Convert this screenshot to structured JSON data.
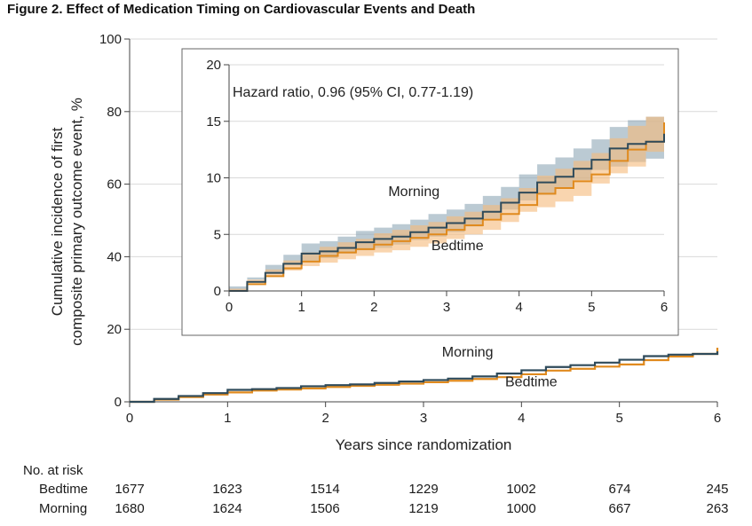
{
  "figure": {
    "title": "Figure 2.  Effect of Medication Timing on Cardiovascular Events and Death"
  },
  "colors": {
    "morning": "#2e4a5a",
    "bedtime": "#e08a1e",
    "morning_band": "#8ea6b6",
    "bedtime_band": "#f5b97a",
    "grid": "#d9d9d9",
    "axis": "#444444"
  },
  "chart_data": [
    {
      "id": "main",
      "type": "line",
      "title": "",
      "xlabel": "Years since randomization",
      "ylabel": [
        "Cumulative incidence of first",
        "composite primary outcome event, %"
      ],
      "xlim": [
        0,
        6
      ],
      "ylim": [
        0,
        100
      ],
      "xticks": [
        0,
        1,
        2,
        3,
        4,
        5,
        6
      ],
      "yticks": [
        0,
        20,
        40,
        60,
        80,
        100
      ],
      "grid": true,
      "series": [
        {
          "name": "Morning",
          "color": "#2e4a5a",
          "x": [
            0,
            0.25,
            0.5,
            0.75,
            1.0,
            1.25,
            1.5,
            1.75,
            2.0,
            2.25,
            2.5,
            2.75,
            3.0,
            3.25,
            3.5,
            3.75,
            4.0,
            4.25,
            4.5,
            4.75,
            5.0,
            5.25,
            5.5,
            5.75,
            6.0
          ],
          "y": [
            0,
            0.8,
            1.6,
            2.4,
            3.3,
            3.5,
            3.8,
            4.3,
            4.6,
            4.8,
            5.2,
            5.6,
            6.0,
            6.4,
            7.0,
            7.8,
            8.7,
            9.6,
            10.1,
            10.8,
            11.6,
            12.6,
            13.0,
            13.2,
            13.9
          ]
        },
        {
          "name": "Bedtime",
          "color": "#e08a1e",
          "x": [
            0,
            0.25,
            0.5,
            0.75,
            1.0,
            1.25,
            1.5,
            1.75,
            2.0,
            2.25,
            2.5,
            2.75,
            3.0,
            3.25,
            3.5,
            3.75,
            4.0,
            4.25,
            4.5,
            4.75,
            5.0,
            5.25,
            5.5,
            5.75,
            6.0
          ],
          "y": [
            0,
            0.6,
            1.3,
            2.0,
            2.6,
            3.1,
            3.4,
            3.7,
            4.1,
            4.4,
            4.7,
            5.0,
            5.4,
            5.8,
            6.3,
            6.8,
            7.6,
            8.6,
            9.1,
            9.7,
            10.3,
            11.5,
            12.5,
            13.2,
            14.9
          ]
        }
      ],
      "annotations": [
        {
          "text": "Morning",
          "x": 3.45,
          "y": 12.5
        },
        {
          "text": "Bedtime",
          "x": 4.1,
          "y": 4.3
        }
      ]
    },
    {
      "id": "inset",
      "type": "area",
      "title": "",
      "xlim": [
        0,
        6
      ],
      "ylim": [
        0,
        20
      ],
      "xticks": [
        0,
        1,
        2,
        3,
        4,
        5,
        6
      ],
      "yticks": [
        0,
        5,
        10,
        15,
        20
      ],
      "grid": true,
      "series": [
        {
          "name": "Morning",
          "color": "#2e4a5a",
          "band_color": "#8ea6b6",
          "x": [
            0,
            0.25,
            0.5,
            0.75,
            1.0,
            1.25,
            1.5,
            1.75,
            2.0,
            2.25,
            2.5,
            2.75,
            3.0,
            3.25,
            3.5,
            3.75,
            4.0,
            4.25,
            4.5,
            4.75,
            5.0,
            5.25,
            5.5,
            5.75,
            6.0
          ],
          "y": [
            0,
            0.8,
            1.6,
            2.4,
            3.3,
            3.5,
            3.8,
            4.3,
            4.6,
            4.8,
            5.2,
            5.6,
            6.0,
            6.4,
            7.0,
            7.8,
            8.7,
            9.6,
            10.1,
            10.8,
            11.6,
            12.6,
            13.0,
            13.2,
            13.9
          ],
          "lower": [
            0,
            0.4,
            1.0,
            1.7,
            2.4,
            2.6,
            2.9,
            3.3,
            3.6,
            3.8,
            4.1,
            4.5,
            4.8,
            5.2,
            5.7,
            6.4,
            7.2,
            8.0,
            8.5,
            9.1,
            9.8,
            10.7,
            11.0,
            11.4,
            11.7
          ],
          "upper": [
            0,
            1.2,
            2.3,
            3.2,
            4.2,
            4.4,
            4.8,
            5.3,
            5.6,
            5.9,
            6.3,
            6.8,
            7.2,
            7.7,
            8.4,
            9.2,
            10.3,
            11.2,
            11.8,
            12.6,
            13.4,
            14.5,
            15.1,
            15.4,
            16.1
          ]
        },
        {
          "name": "Bedtime",
          "color": "#e08a1e",
          "band_color": "#f5b97a",
          "x": [
            0,
            0.25,
            0.5,
            0.75,
            1.0,
            1.25,
            1.5,
            1.75,
            2.0,
            2.25,
            2.5,
            2.75,
            3.0,
            3.25,
            3.5,
            3.75,
            4.0,
            4.25,
            4.5,
            4.75,
            5.0,
            5.25,
            5.5,
            5.75,
            6.0
          ],
          "y": [
            0,
            0.6,
            1.3,
            2.0,
            2.6,
            3.1,
            3.4,
            3.7,
            4.1,
            4.4,
            4.7,
            5.0,
            5.4,
            5.8,
            6.3,
            6.8,
            7.6,
            8.6,
            9.1,
            9.7,
            10.3,
            11.5,
            12.5,
            13.2,
            14.9
          ],
          "lower": [
            0,
            0.2,
            0.7,
            1.3,
            1.8,
            2.2,
            2.5,
            2.8,
            3.1,
            3.4,
            3.6,
            3.9,
            4.2,
            4.6,
            5.0,
            5.4,
            6.1,
            7.0,
            7.4,
            7.9,
            8.4,
            9.5,
            10.4,
            11.0,
            12.3
          ],
          "upper": [
            0,
            1.0,
            1.9,
            2.7,
            3.4,
            3.9,
            4.3,
            4.6,
            5.1,
            5.4,
            5.8,
            6.1,
            6.6,
            7.0,
            7.6,
            8.2,
            9.1,
            10.2,
            10.8,
            11.5,
            12.2,
            13.5,
            14.6,
            15.4,
            17.0
          ]
        }
      ],
      "annotations": [
        {
          "text": "Hazard ratio, 0.96 (95% CI, 0.77-1.19)"
        },
        {
          "text": "Morning",
          "x": 2.55,
          "y": 8.4
        },
        {
          "text": "Bedtime",
          "x": 3.15,
          "y": 3.6
        }
      ]
    }
  ],
  "risk_table": {
    "title": "No. at risk",
    "rows": [
      {
        "label": "Bedtime",
        "values": [
          "1677",
          "1623",
          "1514",
          "1229",
          "1002",
          "674",
          "245"
        ]
      },
      {
        "label": "Morning",
        "values": [
          "1680",
          "1624",
          "1506",
          "1219",
          "1000",
          "667",
          "263"
        ]
      }
    ]
  }
}
